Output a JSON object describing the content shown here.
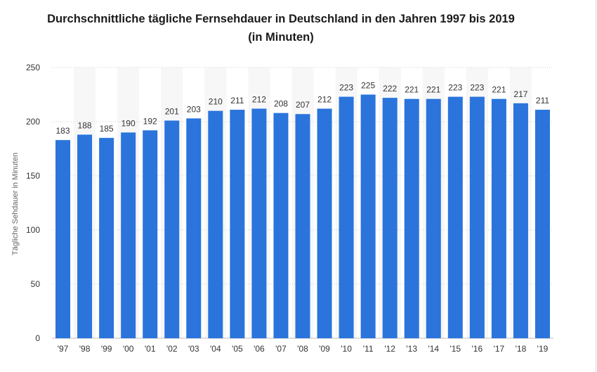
{
  "chart_data": {
    "type": "bar",
    "title_line1": "Durchschnittliche tägliche Fernsehdauer in Deutschland in den Jahren 1997 bis 2019",
    "title_line2": "(in Minuten)",
    "xlabel": "",
    "ylabel": "Tägliche Sehdauer in Minuten",
    "ylim": [
      0,
      250
    ],
    "yticks": [
      0,
      50,
      100,
      150,
      200,
      250
    ],
    "grid": true,
    "legend": "none",
    "bar_color": "#2a74dc",
    "categories": [
      "'97",
      "'98",
      "'99",
      "'00",
      "'01",
      "'02",
      "'03",
      "'04",
      "'05",
      "'06",
      "'07",
      "'08",
      "'09",
      "'10",
      "'11",
      "'12",
      "'13",
      "'14",
      "'15",
      "'16",
      "'17",
      "'18",
      "'19"
    ],
    "values": [
      183,
      188,
      185,
      190,
      192,
      201,
      203,
      210,
      211,
      212,
      208,
      207,
      212,
      223,
      225,
      222,
      221,
      221,
      223,
      223,
      221,
      217,
      211
    ]
  }
}
